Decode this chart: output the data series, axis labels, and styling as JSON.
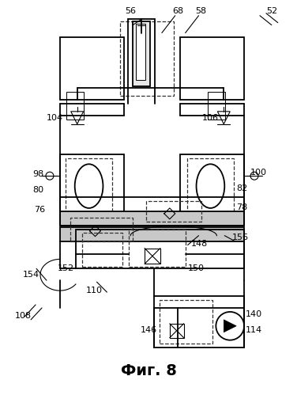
{
  "title": "Фиг. 8",
  "bg_color": "#ffffff",
  "line_color": "#000000",
  "figsize": [
    3.76,
    4.99
  ],
  "dpi": 100
}
